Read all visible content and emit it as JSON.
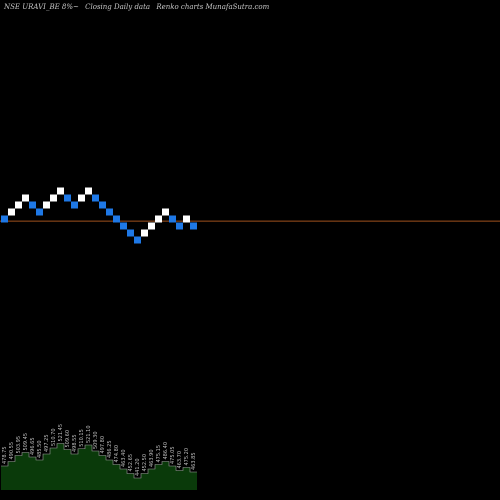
{
  "header": {
    "symbol": "NSE URAVI_BE 8%~",
    "description": "Closing Daily data",
    "title": "Renko charts MunafaSutra.com"
  },
  "colors": {
    "background": "#000000",
    "up_brick": "#ffffff",
    "down_brick": "#1e78e6",
    "last_price_line": "#a0521e",
    "volume_area": "#0a3a0a",
    "volume_line": "#a0a0a0",
    "label": "#bfbfbf"
  },
  "chart_data": {
    "type": "renko",
    "bricks": [
      {
        "level": 0,
        "dir": "down"
      },
      {
        "level": 1,
        "dir": "up"
      },
      {
        "level": 2,
        "dir": "up"
      },
      {
        "level": 3,
        "dir": "up"
      },
      {
        "level": 2,
        "dir": "down"
      },
      {
        "level": 1,
        "dir": "down"
      },
      {
        "level": 2,
        "dir": "up"
      },
      {
        "level": 3,
        "dir": "up"
      },
      {
        "level": 4,
        "dir": "up"
      },
      {
        "level": 3,
        "dir": "down"
      },
      {
        "level": 2,
        "dir": "down"
      },
      {
        "level": 3,
        "dir": "up"
      },
      {
        "level": 4,
        "dir": "up"
      },
      {
        "level": 3,
        "dir": "down"
      },
      {
        "level": 2,
        "dir": "down"
      },
      {
        "level": 1,
        "dir": "down"
      },
      {
        "level": 0,
        "dir": "down"
      },
      {
        "level": -1,
        "dir": "down"
      },
      {
        "level": -2,
        "dir": "down"
      },
      {
        "level": -3,
        "dir": "down"
      },
      {
        "level": -2,
        "dir": "up"
      },
      {
        "level": -1,
        "dir": "up"
      },
      {
        "level": 0,
        "dir": "up"
      },
      {
        "level": 1,
        "dir": "up"
      },
      {
        "level": 0,
        "dir": "down"
      },
      {
        "level": -1,
        "dir": "down"
      },
      {
        "level": 0,
        "dir": "up"
      },
      {
        "level": -1,
        "dir": "down"
      }
    ],
    "last_price_level": -0.3,
    "price_labels": [
      "478.75",
      "490.55",
      "503.95",
      "509.45",
      "496.65",
      "485.50",
      "497.25",
      "510.70",
      "521.45",
      "509.60",
      "498.55",
      "510.15",
      "521.10",
      "509.30",
      "497.80",
      "486.25",
      "474.80",
      "463.40",
      "452.65",
      "441.20",
      "452.50",
      "463.90",
      "475.15",
      "486.40",
      "475.05",
      "463.70",
      "475.20",
      "463.85"
    ],
    "volume": [
      0.32,
      0.38,
      0.46,
      0.5,
      0.44,
      0.4,
      0.48,
      0.56,
      0.62,
      0.54,
      0.48,
      0.55,
      0.6,
      0.52,
      0.46,
      0.4,
      0.34,
      0.28,
      0.22,
      0.16,
      0.22,
      0.28,
      0.34,
      0.38,
      0.32,
      0.26,
      0.3,
      0.24
    ]
  }
}
